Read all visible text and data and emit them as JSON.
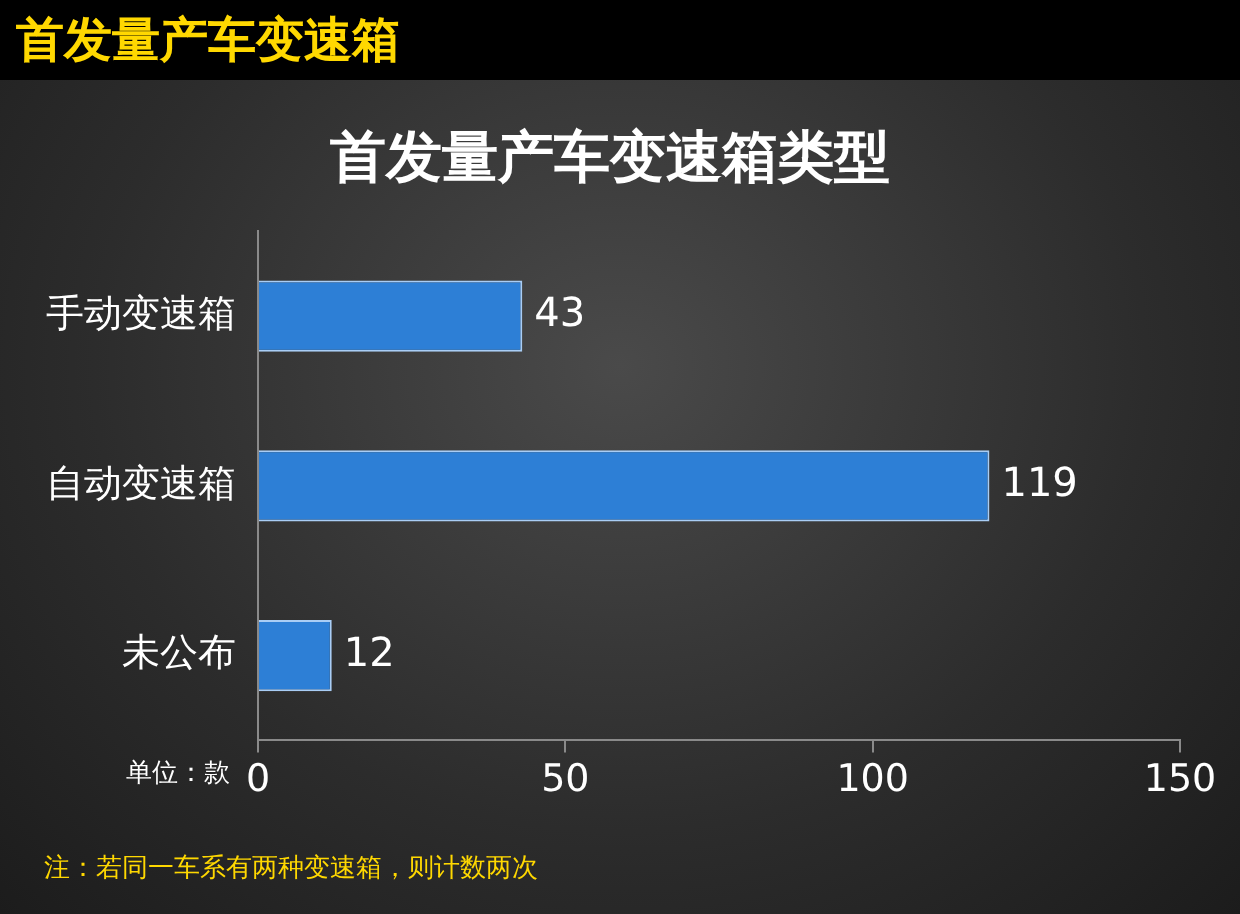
{
  "chart_data": {
    "type": "bar",
    "orientation": "horizontal",
    "title": "首发量产车变速箱",
    "subtitle": "首发量产车变速箱类型",
    "categories": [
      "手动变速箱",
      "自动变速箱",
      "未公布"
    ],
    "values": [
      43,
      119,
      12
    ],
    "color": "#2d7fd6",
    "xlim": [
      0,
      150
    ],
    "xticks": [
      0,
      50,
      100,
      150
    ],
    "grid": false,
    "legend": false,
    "data_labels": true,
    "annotations": [
      "单位：款",
      "注：若同一车系有两种变速箱，则计数两次"
    ]
  }
}
